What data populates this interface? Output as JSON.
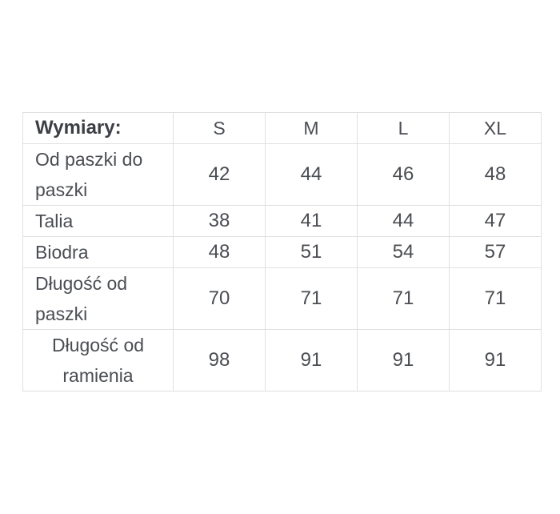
{
  "chart_data": {
    "type": "table",
    "title": "Wymiary:",
    "columns": [
      "S",
      "M",
      "L",
      "XL"
    ],
    "rows": [
      {
        "label": "Od paszki do paszki",
        "align": "left",
        "values": [
          "42",
          "44",
          "46",
          "48"
        ]
      },
      {
        "label": "Talia",
        "align": "left",
        "values": [
          "38",
          "41",
          "44",
          "47"
        ]
      },
      {
        "label": "Biodra",
        "align": "left",
        "values": [
          "48",
          "51",
          "54",
          "57"
        ]
      },
      {
        "label": "Długość od paszki",
        "align": "left",
        "values": [
          "70",
          "71",
          "71",
          "71"
        ]
      },
      {
        "label": "Długość od ramienia",
        "align": "center",
        "values": [
          "98",
          "91",
          "91",
          "91"
        ]
      }
    ],
    "layout": {
      "legend": "none",
      "grid": "full-borders"
    },
    "colors": {
      "background": "#ffffff",
      "border": "#e0e0e0",
      "text": "#4a4d52",
      "header_text": "#3c3f45"
    }
  }
}
